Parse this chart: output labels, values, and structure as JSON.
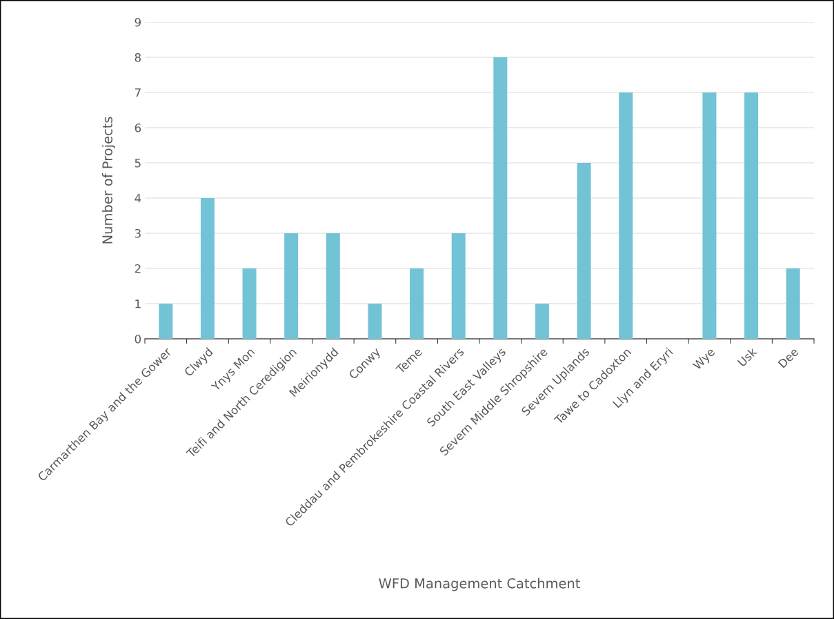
{
  "chart_data": {
    "type": "bar",
    "xlabel": "WFD Management Catchment",
    "ylabel": "Number of Projects",
    "categories": [
      "Carmarthen Bay and the Gower",
      "Clwyd",
      "Ynys Mon",
      "Teifi and North Ceredigion",
      "Meirionydd",
      "Conwy",
      "Teme",
      "Cleddau and Pembrokeshire Coastal Rivers",
      "South East Valleys",
      "Severn Middle Shropshire",
      "Severn Uplands",
      "Tawe to Cadoxton",
      "Llyn and Eryri",
      "Wye",
      "Usk",
      "Dee"
    ],
    "values": [
      1,
      4,
      2,
      3,
      3,
      1,
      2,
      3,
      8,
      1,
      5,
      7,
      0,
      7,
      7,
      2
    ],
    "color": "#72c3d6",
    "ylim": [
      0,
      9
    ],
    "yticks": [
      0,
      1,
      2,
      3,
      4,
      5,
      6,
      7,
      8,
      9
    ],
    "grid": "y"
  }
}
